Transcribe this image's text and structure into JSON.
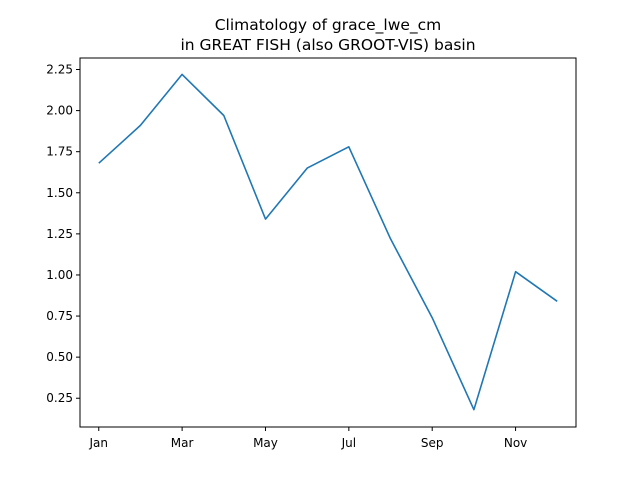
{
  "chart_data": {
    "type": "line",
    "title_line1": "Climatology of grace_lwe_cm",
    "title_line2": "in GREAT FISH (also GROOT-VIS) basin",
    "xlabel": "",
    "ylabel": "",
    "x_tick_labels": [
      "Jan",
      "Mar",
      "May",
      "Jul",
      "Sep",
      "Nov"
    ],
    "x_tick_months": [
      1,
      3,
      5,
      7,
      9,
      11
    ],
    "xlim": [
      0.55,
      12.45
    ],
    "y_ticks": [
      0.25,
      0.5,
      0.75,
      1.0,
      1.25,
      1.5,
      1.75,
      2.0,
      2.25
    ],
    "y_tick_labels": [
      "0.25",
      "0.50",
      "0.75",
      "1.00",
      "1.25",
      "1.50",
      "1.75",
      "2.00",
      "2.25"
    ],
    "ylim": [
      0.075,
      2.32
    ],
    "grid": false,
    "series": [
      {
        "color": "#1f77b4",
        "x": [
          1,
          2,
          3,
          4,
          5,
          6,
          7,
          8,
          9,
          10,
          11,
          12
        ],
        "values": [
          1.68,
          1.91,
          2.22,
          1.97,
          1.34,
          1.65,
          1.78,
          1.22,
          0.74,
          0.18,
          1.02,
          0.84
        ]
      }
    ]
  }
}
